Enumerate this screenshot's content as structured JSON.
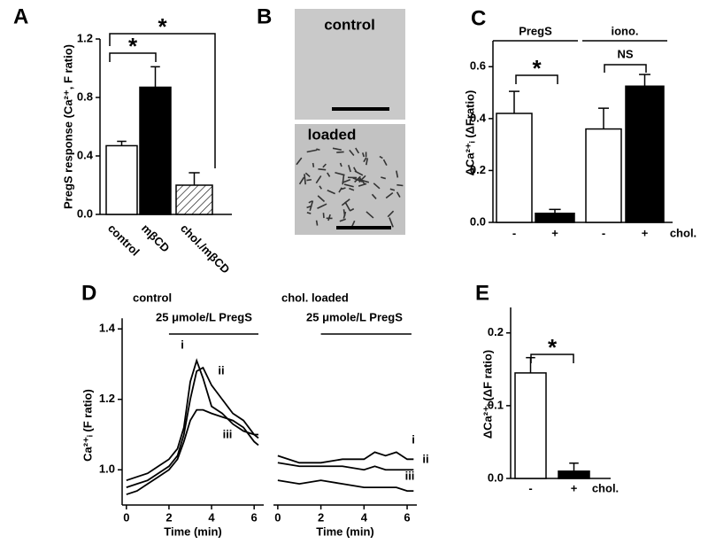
{
  "chart_data": [
    {
      "type": "bar",
      "panel_label": "A",
      "y_label": "PregS response (Ca²⁺, F ratio)",
      "categories": [
        "control",
        "mβCD",
        "chol./mβCD"
      ],
      "values": [
        0.47,
        0.87,
        0.2
      ],
      "errors": [
        0.03,
        0.14,
        0.085
      ],
      "fills": [
        "white",
        "black",
        "hatched"
      ],
      "ylim": [
        0,
        1.2
      ],
      "yticks": [
        {
          "value": 0,
          "label": "0.0"
        },
        0.4,
        0.8,
        1.2
      ],
      "brackets": [
        {
          "from": 0,
          "to": 1,
          "label": "*"
        },
        {
          "from": 0,
          "to": 2,
          "label": "*"
        }
      ]
    },
    {
      "type": "bar",
      "panel_label": "C",
      "y_label": "ΔCa²⁺ᵢ (ΔFratio)",
      "categories": [
        "-",
        "+",
        "-",
        "+"
      ],
      "x_note": "chol.",
      "values": [
        0.42,
        0.035,
        0.36,
        0.525
      ],
      "errors": [
        0.085,
        0.015,
        0.08,
        0.045
      ],
      "fills": [
        "white",
        "black",
        "white",
        "black"
      ],
      "ylim": [
        0,
        0.7
      ],
      "yticks": [
        {
          "value": 0,
          "label": "0.0"
        },
        0.2,
        0.4,
        0.6
      ],
      "groups": [
        {
          "label": "PregS",
          "from": 0,
          "to": 1
        },
        {
          "label": "iono.",
          "from": 2,
          "to": 3
        }
      ],
      "brackets": [
        {
          "from": 0,
          "to": 1,
          "label": "*"
        },
        {
          "from": 2,
          "to": 3,
          "label": "NS"
        }
      ]
    },
    {
      "type": "line",
      "panel_label": "D",
      "title": "control",
      "y_label": "Ca²⁺ᵢ (F ratio)",
      "x_label": "Time (min)",
      "stimulus": {
        "label": "25 μmole/L PregS",
        "start": 2,
        "end": 6.2
      },
      "x": [
        0,
        0.5,
        1,
        1.5,
        2,
        2.4,
        2.7,
        3.0,
        3.3,
        3.6,
        4,
        4.5,
        5,
        5.5,
        6,
        6.2
      ],
      "series": [
        {
          "name": "i",
          "color": "#000000",
          "values": [
            0.97,
            0.98,
            0.99,
            1.01,
            1.03,
            1.06,
            1.12,
            1.25,
            1.31,
            1.26,
            1.18,
            1.16,
            1.13,
            1.11,
            1.1,
            1.1
          ]
        },
        {
          "name": "ii",
          "color": "#000000",
          "values": [
            0.95,
            0.96,
            0.97,
            0.99,
            1.01,
            1.04,
            1.1,
            1.2,
            1.28,
            1.29,
            1.24,
            1.2,
            1.16,
            1.14,
            1.1,
            1.09
          ]
        },
        {
          "name": "iii",
          "color": "#000000",
          "values": [
            0.93,
            0.94,
            0.96,
            0.98,
            1.0,
            1.03,
            1.08,
            1.14,
            1.17,
            1.17,
            1.16,
            1.15,
            1.14,
            1.12,
            1.08,
            1.07
          ]
        }
      ],
      "xlim": [
        -0.2,
        6.45
      ],
      "xticks": [
        0,
        2,
        4,
        6
      ],
      "ylim": [
        0.9,
        1.43
      ],
      "yticks": [
        {
          "value": 1.0,
          "label": "1.0"
        },
        1.2,
        1.4
      ]
    },
    {
      "type": "line",
      "title": "chol. loaded",
      "x_label": "Time (min)",
      "stimulus": {
        "label": "25 μmole/L PregS",
        "start": 2,
        "end": 6.2
      },
      "x": [
        0,
        1,
        2,
        3,
        4,
        4.5,
        5,
        5.5,
        6,
        6.3
      ],
      "series": [
        {
          "name": "i",
          "color": "#000000",
          "values": [
            1.04,
            1.02,
            1.02,
            1.03,
            1.03,
            1.05,
            1.04,
            1.05,
            1.03,
            1.03
          ]
        },
        {
          "name": "ii",
          "color": "#000000",
          "values": [
            1.02,
            1.01,
            1.01,
            1.01,
            1.0,
            1.01,
            1.0,
            1.0,
            1.0,
            1.0
          ]
        },
        {
          "name": "iii",
          "color": "#000000",
          "values": [
            0.97,
            0.96,
            0.97,
            0.96,
            0.95,
            0.95,
            0.95,
            0.95,
            0.94,
            0.94
          ]
        }
      ],
      "xlim": [
        -0.2,
        6.45
      ],
      "xticks": [
        0,
        2,
        4,
        6
      ],
      "ylim": [
        0.9,
        1.43
      ]
    },
    {
      "type": "bar",
      "panel_label": "E",
      "y_label": "ΔCa²⁺ᵢ (ΔF ratio)",
      "categories": [
        "-",
        "+"
      ],
      "x_note": "chol.",
      "values": [
        0.145,
        0.01
      ],
      "errors": [
        0.021,
        0.011
      ],
      "fills": [
        "white",
        "black"
      ],
      "ylim": [
        0,
        0.235
      ],
      "yticks": [
        {
          "value": 0,
          "label": "0.0"
        },
        0.1,
        0.2
      ],
      "brackets": [
        {
          "from": 0,
          "to": 1,
          "label": "*"
        }
      ]
    }
  ],
  "image_panel": {
    "panel_label": "B",
    "labels": [
      "control",
      "loaded"
    ]
  }
}
